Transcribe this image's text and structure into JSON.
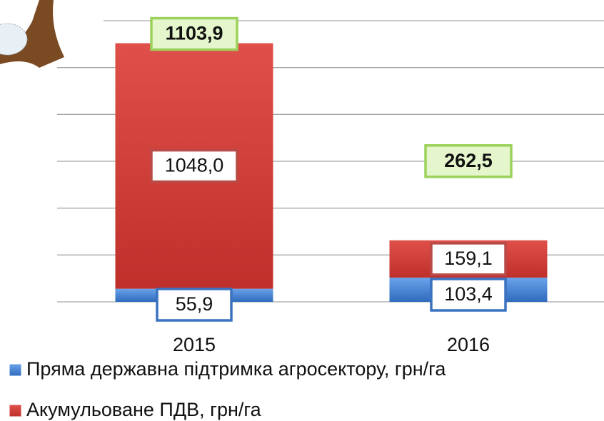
{
  "chart_data": {
    "type": "stacked-bar",
    "categories": [
      "2015",
      "2016"
    ],
    "series": [
      {
        "name": "Пряма державна підтримка агросектору, грн/га",
        "color": "#3f7fd0",
        "values": [
          55.9,
          103.4
        ],
        "value_labels": [
          "55,9",
          "103,4"
        ]
      },
      {
        "name": "Акумульоване ПДВ, грн/га",
        "color": "#d23b35",
        "values": [
          1048.0,
          159.1
        ],
        "value_labels": [
          "1048,0",
          "159,1"
        ]
      }
    ],
    "totals": [
      1103.9,
      262.5
    ],
    "total_labels": [
      "1103,9",
      "262,5"
    ],
    "ylim": [
      0,
      1200
    ],
    "yticks": [
      0,
      200,
      400,
      600,
      800,
      1000,
      1200
    ],
    "grid": true,
    "legend": "bottom-left"
  }
}
